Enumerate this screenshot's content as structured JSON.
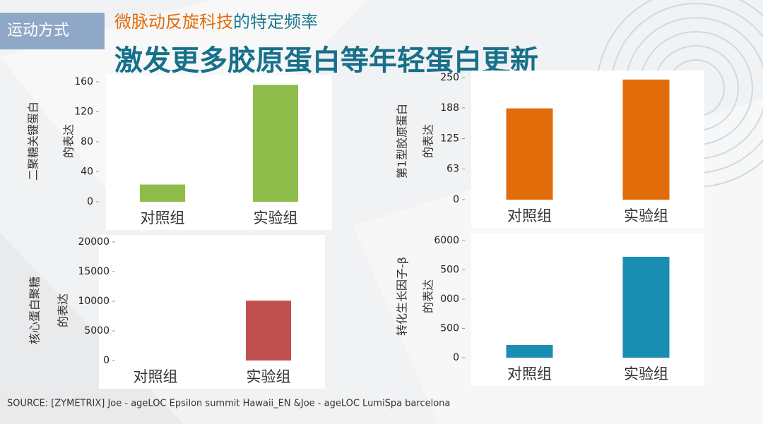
{
  "slide": {
    "tag": "运动方式",
    "subtitle_parts": [
      "微脉动反旋科技",
      "的特定频率"
    ],
    "title": "激发更多胶原蛋白等年轻蛋白更新",
    "source": "SOURCE: [ZYMETRIX] Joe - ageLOC Epsilon summit Hawaii_EN &Joe - ageLOC LumiSpa barcelona"
  },
  "chart_data": [
    {
      "type": "bar",
      "y_label": [
        "二聚糖关键蛋白",
        "的表达"
      ],
      "categories": [
        "对照组",
        "实验组"
      ],
      "values": [
        23,
        156
      ],
      "color": "#8fbc4a",
      "ylim": [
        0,
        160
      ],
      "yticks": [
        0,
        40,
        80,
        120,
        160
      ]
    },
    {
      "type": "bar",
      "y_label": [
        "第1型胶原蛋白",
        "的表达"
      ],
      "categories": [
        "对照组",
        "实验组"
      ],
      "values": [
        187,
        246
      ],
      "color": "#e36c0a",
      "ylim": [
        0,
        250
      ],
      "yticks": [
        0,
        63,
        125,
        188,
        250
      ]
    },
    {
      "type": "bar",
      "y_label": [
        "核心蛋白聚糖",
        "的表达"
      ],
      "categories": [
        "对照组",
        "实验组"
      ],
      "values": [
        0,
        10100
      ],
      "color": "#c0504d",
      "ylim": [
        0,
        20000
      ],
      "yticks": [
        0,
        5000,
        10000,
        15000,
        20000
      ]
    },
    {
      "type": "bar",
      "y_label": [
        "转化生长因子-β",
        "的表达"
      ],
      "categories": [
        "对照组",
        "实验组"
      ],
      "values": [
        650,
        5170
      ],
      "color": "#1a8db3",
      "ylim": [
        0,
        6000
      ],
      "yticks": [
        0,
        {
          "value": 1500,
          "label": "500"
        },
        {
          "value": 3000,
          "label": "000"
        },
        {
          "value": 4500,
          "label": "500"
        },
        6000
      ]
    }
  ]
}
